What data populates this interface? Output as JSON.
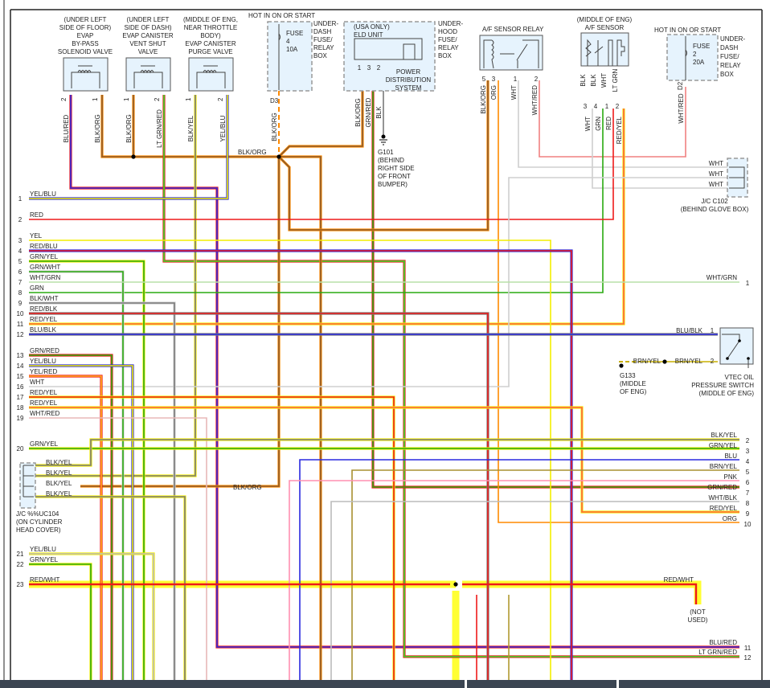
{
  "components": {
    "bypass": {
      "title": [
        "(UNDER LEFT",
        "SIDE OF FLOOR)",
        "EVAP",
        "BY-PASS",
        "SOLENOID VALVE"
      ],
      "pins": [
        "2",
        "1"
      ],
      "wires": [
        "BLU/RED",
        "BLK/ORG"
      ]
    },
    "vent": {
      "title": [
        "(UNDER LEFT",
        "SIDE OF DASH)",
        "EVAP CANISTER",
        "VENT SHUT",
        "VALVE"
      ],
      "pins": [
        "1",
        "2"
      ],
      "wires": [
        "BLK/ORG",
        "LT GRN/RED"
      ]
    },
    "purge": {
      "title": [
        "(MIDDLE OF ENG,",
        "NEAR THROTTLE",
        "BODY)",
        "EVAP CANISTER",
        "PURGE VALVE"
      ],
      "pins": [
        "1",
        "2"
      ],
      "wires": [
        "BLK/YEL",
        "YEL/BLU"
      ]
    },
    "fuse4": {
      "hot": "HOT IN ON OR START",
      "fuse": [
        "FUSE",
        "4",
        "10A"
      ],
      "box": [
        "UNDER-",
        "DASH",
        "FUSE/",
        "RELAY",
        "BOX"
      ],
      "pin": "D3",
      "wire": "BLK/ORG"
    },
    "eld": {
      "title": [
        "(USA ONLY)",
        "ELD UNIT"
      ],
      "pins": [
        "1",
        "3",
        "2"
      ],
      "system": [
        "POWER",
        "DISTRIBUTION",
        "SYSTEM"
      ],
      "box": [
        "UNDER-",
        "HOOD",
        "FUSE/",
        "RELAY",
        "BOX"
      ],
      "wires": [
        "BLK/ORG",
        "GRN/RED",
        "BLK"
      ]
    },
    "g101": [
      "G101",
      "(BEHIND",
      "RIGHT SIDE",
      "OF FRONT",
      "BUMPER)"
    ],
    "relay": {
      "title": "A/F SENSOR RELAY",
      "pins": [
        "5",
        "3",
        "1",
        "2"
      ],
      "wires": [
        "BLK/ORG",
        "ORG",
        "WHT",
        "WHT/RED"
      ]
    },
    "af_sensor": {
      "title": [
        "(MIDDLE OF ENG)",
        "A/F SENSOR"
      ],
      "top_wires": [
        "BLK",
        "BLK",
        "WHT",
        "LT GRN"
      ],
      "pins": [
        "3",
        "4",
        "1",
        "2"
      ],
      "wires": [
        "WHT",
        "GRN",
        "RED",
        "RED/YEL"
      ]
    },
    "fuse2": {
      "hot": "HOT IN ON OR START",
      "fuse": [
        "FUSE",
        "2",
        "20A"
      ],
      "box": [
        "UNDER-",
        "DASH",
        "FUSE/",
        "RELAY",
        "BOX"
      ],
      "pin": "D2",
      "wire": "WHT/RED"
    },
    "c102": {
      "wires": [
        "WHT",
        "WHT",
        "WHT"
      ],
      "label": [
        "J/C C102",
        "(BEHIND GLOVE BOX)"
      ]
    },
    "vtec": {
      "pins": [
        "1",
        "2"
      ],
      "wires": [
        "BLU/BLK",
        "BRN/YEL"
      ],
      "ground_wire": "BRN/YEL",
      "ground": [
        "G133",
        "(MIDDLE",
        "OF ENG)"
      ],
      "label": [
        "VTEC OIL",
        "PRESSURE SWITCH",
        "(MIDDLE OF ENG)"
      ]
    },
    "c104": {
      "wires": [
        "BLK/YEL",
        "BLK/YEL",
        "BLK/YEL",
        "BLK/YEL"
      ],
      "label": [
        "J/C %%UC104",
        "(ON CYLINDER",
        "HEAD COVER)"
      ],
      "splice_wire": "BLK/ORG"
    },
    "bus_label": "BLK/ORG",
    "not_used": [
      "(NOT",
      "USED)"
    ]
  },
  "left_connector": [
    {
      "pin": "1",
      "wire": "YEL/BLU"
    },
    {
      "pin": "2",
      "wire": "RED"
    },
    {
      "pin": "3",
      "wire": "YEL"
    },
    {
      "pin": "4",
      "wire": "RED/BLU"
    },
    {
      "pin": "5",
      "wire": "GRN/YEL"
    },
    {
      "pin": "6",
      "wire": "GRN/WHT"
    },
    {
      "pin": "7",
      "wire": "WHT/GRN"
    },
    {
      "pin": "8",
      "wire": "GRN"
    },
    {
      "pin": "9",
      "wire": "BLK/WHT"
    },
    {
      "pin": "10",
      "wire": "RED/BLK"
    },
    {
      "pin": "11",
      "wire": "RED/YEL"
    },
    {
      "pin": "12",
      "wire": "BLU/BLK"
    },
    {
      "pin": "13",
      "wire": "GRN/RED"
    },
    {
      "pin": "14",
      "wire": "YEL/BLU"
    },
    {
      "pin": "15",
      "wire": "YEL/RED"
    },
    {
      "pin": "16",
      "wire": "WHT"
    },
    {
      "pin": "17",
      "wire": "RED/YEL"
    },
    {
      "pin": "18",
      "wire": "RED/YEL"
    },
    {
      "pin": "19",
      "wire": "WHT/RED"
    },
    {
      "pin": "20",
      "wire": "GRN/YEL"
    },
    {
      "pin": "21",
      "wire": "YEL/BLU"
    },
    {
      "pin": "22",
      "wire": "GRN/YEL"
    },
    {
      "pin": "23",
      "wire": "RED/WHT"
    }
  ],
  "right_connector": [
    {
      "pin": "1",
      "wire": "WHT/GRN"
    },
    {
      "pin": "2",
      "wire": "BLK/YEL"
    },
    {
      "pin": "3",
      "wire": "GRN/YEL"
    },
    {
      "pin": "4",
      "wire": "BLU"
    },
    {
      "pin": "5",
      "wire": "BRN/YEL"
    },
    {
      "pin": "6",
      "wire": "PNK"
    },
    {
      "pin": "7",
      "wire": "GRN/RED"
    },
    {
      "pin": "8",
      "wire": "WHT/BLK"
    },
    {
      "pin": "9",
      "wire": "RED/YEL"
    },
    {
      "pin": "10",
      "wire": "ORG"
    },
    {
      "pin": "11",
      "wire": "BLU/RED"
    },
    {
      "pin": "12",
      "wire": "LT GRN/RED"
    }
  ],
  "red_wht_label": "RED/WHT",
  "colors": {
    "YEL": "#f4ee00",
    "BLU": "#2a2ae0",
    "RED": "#ee1a1a",
    "GRN": "#2aaa10",
    "LTGRN": "#33e02a",
    "ORG": "#ff8a00",
    "WHT": "#cfcfcf",
    "BLK": "#7a7a7a",
    "BRN": "#8b5a2b",
    "PNK": "#ff8fb0",
    "highlight": "#ffff33",
    "component_fill": "#e6f3fd"
  }
}
